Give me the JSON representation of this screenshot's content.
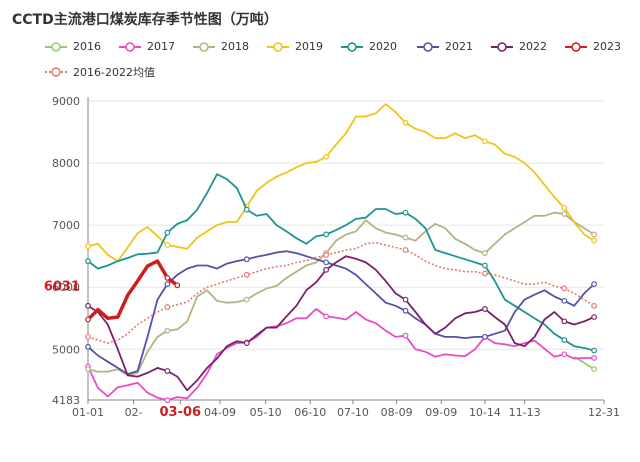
{
  "chart_data": {
    "type": "line",
    "title": "CCTD主流港口煤炭库存季节性图（万吨）",
    "xlabel": "",
    "ylabel": "",
    "ylim": [
      4183,
      9000
    ],
    "yticks": [
      5000,
      6000,
      7000,
      8000,
      9000
    ],
    "ymin_label": "4183",
    "xlim": [
      0,
      52
    ],
    "xticks": [
      {
        "x": 0,
        "label": "01-01"
      },
      {
        "x": 4.6,
        "label": "02-"
      },
      {
        "x": 9.3,
        "label": "03-06",
        "highlight": true
      },
      {
        "x": 13.3,
        "label": "04-09"
      },
      {
        "x": 17.9,
        "label": "05-10"
      },
      {
        "x": 22.4,
        "label": "06-10"
      },
      {
        "x": 26.7,
        "label": "07-10"
      },
      {
        "x": 31.1,
        "label": "08-09"
      },
      {
        "x": 35.6,
        "label": "09-09"
      },
      {
        "x": 40.0,
        "label": "10-14"
      },
      {
        "x": 44.0,
        "label": "11-13"
      },
      {
        "x": 52,
        "label": "12-31"
      }
    ],
    "annotation": {
      "value": 6031,
      "label": "6031"
    },
    "legend_position": "top",
    "grid": "horizontal",
    "series": [
      {
        "name": "2016",
        "color": "#91cc75",
        "values": [
          null,
          null,
          null,
          null,
          null,
          null,
          null,
          null,
          null,
          null,
          null,
          null,
          null,
          null,
          null,
          null,
          null,
          null,
          null,
          null,
          null,
          null,
          null,
          null,
          null,
          null,
          null,
          null,
          null,
          null,
          null,
          null,
          null,
          null,
          null,
          null,
          null,
          null,
          null,
          null,
          null,
          null,
          null,
          null,
          null,
          null,
          null,
          null,
          null,
          4880,
          4780,
          4680,
          null
        ]
      },
      {
        "name": "2017",
        "color": "#e84cc8",
        "values": [
          4720,
          4380,
          4240,
          4390,
          4420,
          4460,
          4300,
          4220,
          4180,
          4230,
          4210,
          4380,
          4610,
          4920,
          5020,
          5100,
          5110,
          5200,
          5350,
          5370,
          5420,
          5500,
          5500,
          5650,
          5530,
          5510,
          5480,
          5600,
          5480,
          5420,
          5300,
          5200,
          5220,
          5000,
          4960,
          4880,
          4920,
          4900,
          4890,
          5000,
          5200,
          5100,
          5080,
          5050,
          5100,
          5140,
          5010,
          4880,
          4920,
          4850,
          4860,
          4860,
          null
        ]
      },
      {
        "name": "2018",
        "color": "#b3b387",
        "values": [
          4680,
          4640,
          4640,
          4680,
          4580,
          4620,
          4960,
          5200,
          5300,
          5320,
          5450,
          5850,
          5950,
          5780,
          5750,
          5760,
          5800,
          5900,
          5980,
          6020,
          6150,
          6250,
          6350,
          6400,
          6550,
          6750,
          6850,
          6900,
          7080,
          6950,
          6880,
          6850,
          6800,
          6750,
          6900,
          7020,
          6950,
          6780,
          6700,
          6600,
          6550,
          6700,
          6850,
          6950,
          7050,
          7150,
          7150,
          7200,
          7180,
          7050,
          6950,
          6850,
          null
        ]
      },
      {
        "name": "2019",
        "color": "#f0c419",
        "values": [
          6660,
          6700,
          6520,
          6420,
          6640,
          6870,
          6970,
          6820,
          6680,
          6650,
          6620,
          6800,
          6900,
          7000,
          7050,
          7050,
          7300,
          7550,
          7680,
          7780,
          7850,
          7930,
          8000,
          8020,
          8100,
          8300,
          8480,
          8750,
          8750,
          8800,
          8950,
          8820,
          8650,
          8550,
          8500,
          8400,
          8400,
          8480,
          8400,
          8450,
          8350,
          8300,
          8150,
          8100,
          8000,
          7850,
          7650,
          7450,
          7280,
          7050,
          6850,
          6750,
          null
        ]
      },
      {
        "name": "2020",
        "color": "#1e9393",
        "values": [
          6420,
          6300,
          6350,
          6420,
          6470,
          6530,
          6540,
          6560,
          6880,
          7020,
          7080,
          7250,
          7520,
          7820,
          7740,
          7600,
          7250,
          7150,
          7180,
          7000,
          6900,
          6790,
          6700,
          6820,
          6850,
          6920,
          7000,
          7100,
          7120,
          7260,
          7260,
          7180,
          7200,
          7100,
          6950,
          6600,
          6550,
          6500,
          6450,
          6400,
          6350,
          6100,
          5800,
          5700,
          5600,
          5500,
          5400,
          5250,
          5150,
          5050,
          5020,
          4980,
          null
        ]
      },
      {
        "name": "2021",
        "color": "#5252a8",
        "values": [
          5040,
          4900,
          4800,
          4700,
          4600,
          4650,
          5200,
          5800,
          6050,
          6200,
          6300,
          6350,
          6350,
          6300,
          6380,
          6420,
          6450,
          6490,
          6520,
          6560,
          6580,
          6550,
          6500,
          6450,
          6400,
          6350,
          6300,
          6200,
          6050,
          5900,
          5750,
          5700,
          5620,
          5500,
          5400,
          5250,
          5200,
          5200,
          5180,
          5200,
          5200,
          5250,
          5300,
          5600,
          5800,
          5880,
          5950,
          5850,
          5780,
          5700,
          5900,
          6050,
          null
        ]
      },
      {
        "name": "2022",
        "color": "#7b2068",
        "values": [
          5700,
          5600,
          5400,
          5000,
          4580,
          4560,
          4620,
          4700,
          4650,
          4560,
          4340,
          4500,
          4700,
          4850,
          5050,
          5130,
          5100,
          5230,
          5350,
          5350,
          5530,
          5700,
          5950,
          6080,
          6280,
          6400,
          6500,
          6460,
          6400,
          6280,
          6100,
          5900,
          5800,
          5600,
          5400,
          5250,
          5350,
          5500,
          5580,
          5600,
          5650,
          5520,
          5400,
          5100,
          5050,
          5200,
          5480,
          5600,
          5450,
          5400,
          5450,
          5520,
          null
        ]
      },
      {
        "name": "2023",
        "color": "#cc1e1e",
        "values": [
          5480,
          5640,
          5500,
          5520,
          5870,
          6100,
          6340,
          6420,
          6150,
          6031,
          null,
          null,
          null,
          null,
          null,
          null,
          null,
          null,
          null,
          null,
          null,
          null,
          null,
          null,
          null,
          null,
          null,
          null,
          null,
          null,
          null,
          null,
          null,
          null,
          null,
          null,
          null,
          null,
          null,
          null,
          null,
          null,
          null,
          null,
          null,
          null,
          null,
          null,
          null,
          null,
          null,
          null,
          null
        ]
      },
      {
        "name": "2016-2022均值",
        "color": "#e07a6e",
        "dashed": true,
        "values": [
          5200,
          5150,
          5100,
          5150,
          5250,
          5400,
          5500,
          5600,
          5680,
          5720,
          5760,
          5900,
          6000,
          6050,
          6100,
          6150,
          6200,
          6250,
          6300,
          6330,
          6350,
          6400,
          6430,
          6480,
          6520,
          6560,
          6600,
          6620,
          6700,
          6720,
          6680,
          6640,
          6600,
          6520,
          6420,
          6350,
          6300,
          6280,
          6250,
          6250,
          6220,
          6200,
          6150,
          6100,
          6050,
          6050,
          6080,
          6020,
          5980,
          5900,
          5800,
          5700,
          null
        ]
      }
    ]
  }
}
